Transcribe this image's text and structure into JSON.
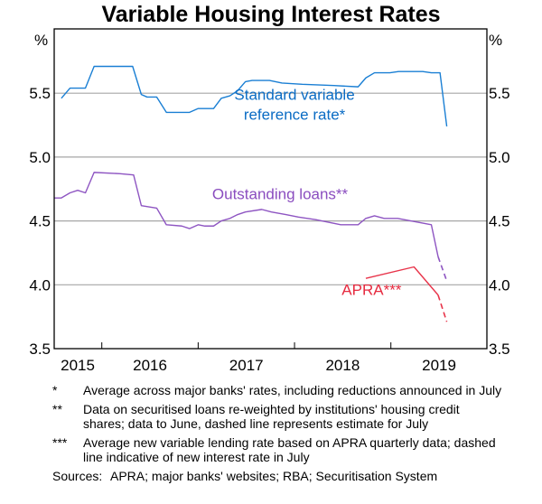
{
  "chart_data": {
    "type": "line",
    "title": "Variable Housing Interest Rates",
    "ylabel_left": "%",
    "ylabel_right": "%",
    "ylim": [
      3.5,
      5.9
    ],
    "xlim": [
      2015.5,
      2020.0
    ],
    "yticks": [
      3.5,
      4.0,
      4.5,
      5.0,
      5.5
    ],
    "ytick_labels": [
      "3.5",
      "4.0",
      "4.5",
      "5.0",
      "5.5"
    ],
    "xtick_positions": [
      2016,
      2017,
      2018,
      2019
    ],
    "xlabels": [
      {
        "label": "2015",
        "center": 2015.75
      },
      {
        "label": "2016",
        "center": 2016.5
      },
      {
        "label": "2017",
        "center": 2017.5
      },
      {
        "label": "2018",
        "center": 2018.5
      },
      {
        "label": "2019",
        "center": 2019.5
      }
    ],
    "grid": true,
    "series": [
      {
        "name": "Standard variable reference rate*",
        "label_lines": [
          "Standard variable",
          "reference rate*"
        ],
        "label_anchor": [
          2018.0,
          5.45
        ],
        "color": "#1a7fd4",
        "label_color": "#0b6cc4",
        "x": [
          2015.58,
          2015.67,
          2015.83,
          2015.92,
          2016.32,
          2016.41,
          2016.47,
          2016.57,
          2016.67,
          2016.91,
          2017.0,
          2017.16,
          2017.24,
          2017.33,
          2017.41,
          2017.49,
          2017.56,
          2017.74,
          2017.87,
          2018.08,
          2018.41,
          2018.66,
          2018.74,
          2018.83,
          2018.99,
          2019.08,
          2019.33,
          2019.42,
          2019.51,
          2019.58
        ],
        "values": [
          5.46,
          5.54,
          5.54,
          5.71,
          5.71,
          5.49,
          5.47,
          5.47,
          5.35,
          5.35,
          5.38,
          5.38,
          5.46,
          5.48,
          5.52,
          5.59,
          5.6,
          5.6,
          5.58,
          5.57,
          5.56,
          5.55,
          5.62,
          5.66,
          5.66,
          5.67,
          5.67,
          5.66,
          5.66,
          5.24
        ],
        "dashed_from_index": null
      },
      {
        "name": "Outstanding loans**",
        "label_lines": [
          "Outstanding loans**"
        ],
        "label_anchor": [
          2017.85,
          4.67
        ],
        "color": "#8e55c2",
        "label_color": "#8a4dbf",
        "x": [
          2015.51,
          2015.58,
          2015.67,
          2015.75,
          2015.83,
          2015.92,
          2016.19,
          2016.33,
          2016.41,
          2016.57,
          2016.67,
          2016.83,
          2016.91,
          2017.0,
          2017.07,
          2017.16,
          2017.24,
          2017.33,
          2017.41,
          2017.49,
          2017.66,
          2017.76,
          2017.91,
          2018.04,
          2018.22,
          2018.48,
          2018.66,
          2018.74,
          2018.83,
          2018.93,
          2019.07,
          2019.42,
          2019.49,
          2019.58
        ],
        "values": [
          4.68,
          4.68,
          4.72,
          4.74,
          4.72,
          4.88,
          4.87,
          4.86,
          4.62,
          4.6,
          4.47,
          4.46,
          4.44,
          4.47,
          4.46,
          4.46,
          4.5,
          4.52,
          4.55,
          4.57,
          4.59,
          4.57,
          4.55,
          4.53,
          4.51,
          4.47,
          4.47,
          4.52,
          4.54,
          4.52,
          4.52,
          4.47,
          4.22,
          4.03
        ],
        "dashed_from_index": 32
      },
      {
        "name": "APRA***",
        "label_lines": [
          "APRA***"
        ],
        "label_anchor": [
          2018.8,
          3.92
        ],
        "color": "#e8344a",
        "label_color": "#e62a3f",
        "x": [
          2018.74,
          2019.24,
          2019.49,
          2019.58
        ],
        "values": [
          4.05,
          4.14,
          3.92,
          3.71
        ],
        "dashed_from_index": 2
      }
    ]
  },
  "notes": [
    {
      "mark": "*",
      "text": "Average across major banks' rates, including reductions announced in July"
    },
    {
      "mark": "**",
      "text": "Data on securitised loans re-weighted by institutions' housing credit shares; data to June, dashed line represents estimate for July"
    },
    {
      "mark": "***",
      "text": "Average new variable lending rate based on APRA quarterly data; dashed line indicative of new interest rate in July"
    }
  ],
  "sources": {
    "label": "Sources:",
    "text": "APRA; major banks' websites; RBA; Securitisation System"
  }
}
